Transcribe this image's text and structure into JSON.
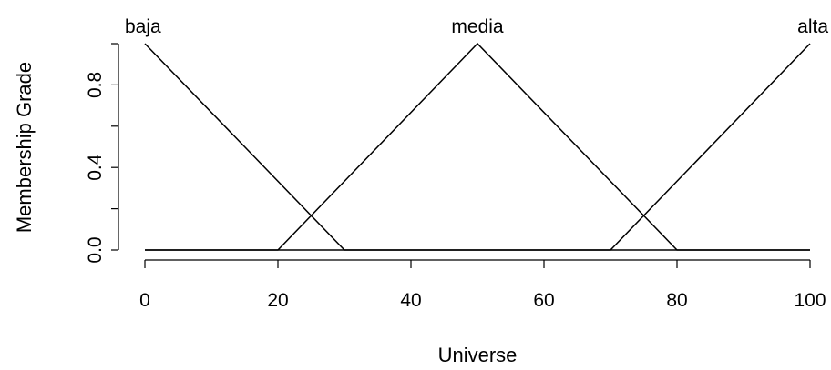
{
  "chart_data": {
    "type": "line",
    "title": "",
    "xlabel": "Universe",
    "ylabel": "Membership Grade",
    "xlim": [
      0,
      100
    ],
    "ylim": [
      0,
      1
    ],
    "x_ticks": [
      0,
      20,
      40,
      60,
      80,
      100
    ],
    "x_tick_labels": [
      "0",
      "20",
      "40",
      "60",
      "80",
      "100"
    ],
    "y_ticks": [
      0.0,
      0.4,
      0.8
    ],
    "y_tick_labels": [
      "0.0",
      "0.4",
      "0.8"
    ],
    "grid": false,
    "series": [
      {
        "name": "baja",
        "x": [
          0,
          30,
          100
        ],
        "y": [
          1,
          0,
          0
        ]
      },
      {
        "name": "media",
        "x": [
          0,
          20,
          50,
          80,
          100
        ],
        "y": [
          0,
          0,
          1,
          0,
          0
        ]
      },
      {
        "name": "alta",
        "x": [
          0,
          70,
          100
        ],
        "y": [
          0,
          0,
          1
        ]
      }
    ]
  }
}
